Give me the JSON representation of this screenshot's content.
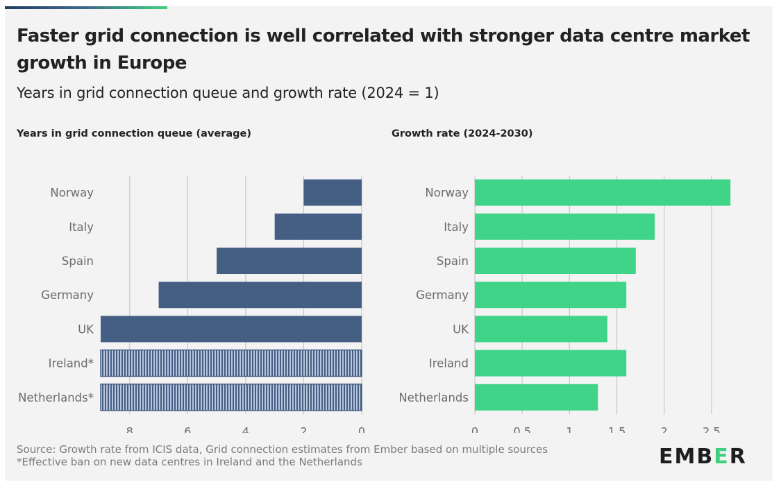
{
  "title": "Faster grid connection is well correlated with stronger data centre market growth in Europe",
  "subtitle": "Years in grid connection queue and growth rate (2024 = 1)",
  "colors": {
    "queue_bar": "#455e84",
    "queue_bar_hatch": "#b9c6dc",
    "growth_bar": "#3fd487",
    "gridline": "#c8c8c8"
  },
  "chart_data": [
    {
      "type": "bar",
      "orientation": "horizontal",
      "title": "Years in grid connection queue (average)",
      "categories": [
        "Norway",
        "Italy",
        "Spain",
        "Germany",
        "UK",
        "Ireland*",
        "Netherlands*"
      ],
      "values": [
        2,
        3,
        5,
        7,
        9,
        9,
        9
      ],
      "hatched": [
        false,
        false,
        false,
        false,
        false,
        true,
        true
      ],
      "xlim": [
        9,
        0
      ],
      "reversed_axis": true,
      "ticks": [
        8,
        6,
        4,
        2,
        0
      ],
      "grid": true
    },
    {
      "type": "bar",
      "orientation": "horizontal",
      "title": "Growth rate (2024-2030)",
      "categories": [
        "Norway",
        "Italy",
        "Spain",
        "Germany",
        "UK",
        "Ireland",
        "Netherlands"
      ],
      "values": [
        2.7,
        1.9,
        1.7,
        1.6,
        1.4,
        1.6,
        1.3
      ],
      "xlim": [
        0,
        2.75
      ],
      "ticks": [
        0,
        0.5,
        1,
        1.5,
        2,
        2.5
      ],
      "tick_labels": [
        "0",
        "0.5",
        "1",
        "1.5",
        "2",
        "2.5"
      ],
      "grid": true
    }
  ],
  "footer": {
    "source": "Source: Growth rate from ICIS data, Grid connection estimates from Ember based on multiple sources",
    "note": "*Effective ban on new data centres in Ireland and the Netherlands"
  },
  "logo": {
    "part1": "EMB",
    "part2": "E",
    "part3": "R"
  }
}
